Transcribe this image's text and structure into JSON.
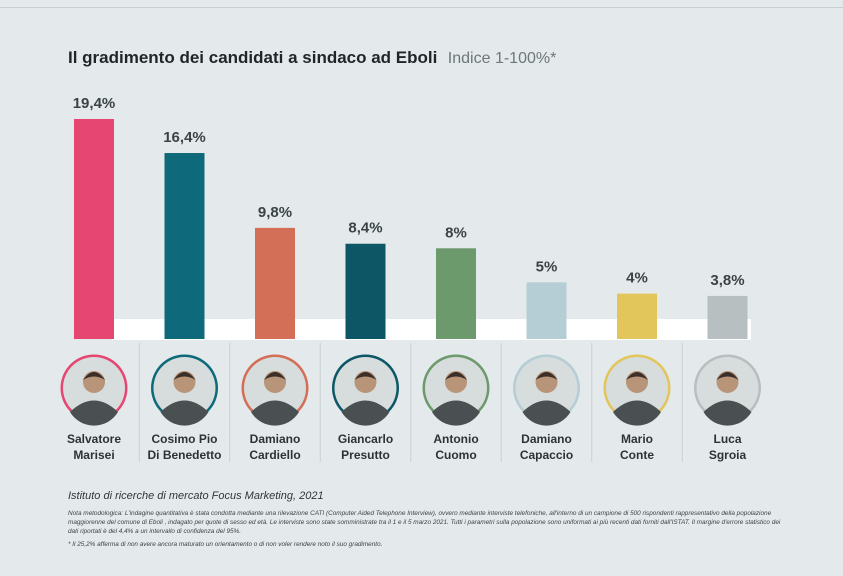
{
  "header": {
    "title": "Il gradimento dei candidati a sindaco ad Eboli",
    "subtitle": "Indice 1-100%*"
  },
  "chart_data": {
    "type": "bar",
    "title": "Il gradimento dei candidati a sindaco ad Eboli",
    "subtitle": "Indice 1-100%*",
    "xlabel": "",
    "ylabel": "",
    "ylim": [
      0,
      20
    ],
    "grid": false,
    "categories": [
      [
        "Salvatore",
        "Marisei"
      ],
      [
        "Cosimo Pio",
        "Di Benedetto"
      ],
      [
        "Damiano",
        "Cardiello"
      ],
      [
        "Giancarlo",
        "Presutto"
      ],
      [
        "Antonio",
        "Cuomo"
      ],
      [
        "Damiano",
        "Capaccio"
      ],
      [
        "Mario",
        "Conte"
      ],
      [
        "Luca",
        "Sgroia"
      ]
    ],
    "values": [
      19.4,
      16.4,
      9.8,
      8.4,
      8,
      5,
      4,
      3.8
    ],
    "value_labels": [
      "19,4%",
      "16,4%",
      "9,8%",
      "8,4%",
      "8%",
      "5%",
      "4%",
      "3,8%"
    ],
    "colors": [
      "#e64672",
      "#0e6a7a",
      "#d46f57",
      "#0d5665",
      "#6d9a6c",
      "#b5cdd5",
      "#e2c65b",
      "#b8bfc0"
    ]
  },
  "footer": {
    "source": "Istituto di ricerche di mercato Focus Marketing, 2021",
    "note": "Nota metodologica: L'indagine quantitativa è stata condotta mediante una rilevazione CATI (Computer Aided Telephone Interview), ovvero mediante interviste telefoniche, all'interno di un campione di 500 rispondenti rappresentativo della popolazione maggiorenne del comune di Eboli , indagato per quote di sesso ed età. Le interviste sono state somministrate tra il 1 e il 5 marzo 2021. Tutti i parametri sulla popolazione sono uniformati ai più recenti dati forniti dall'ISTAT. Il margine d'errore statistico dei dati riportati è del 4,4% a un intervallo di confidenza del 95%.",
    "footnote": "* Il 25,2% afferma di non avere ancora maturato un orientamento o di non voler rendere noto il suo gradimento."
  }
}
